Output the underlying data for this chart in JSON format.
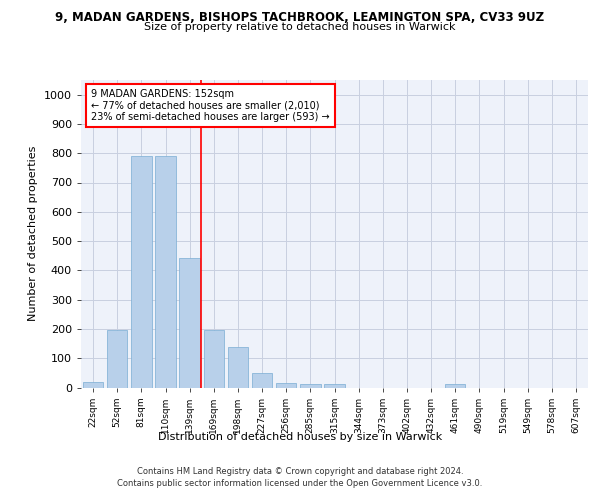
{
  "title_line1": "9, MADAN GARDENS, BISHOPS TACHBROOK, LEAMINGTON SPA, CV33 9UZ",
  "title_line2": "Size of property relative to detached houses in Warwick",
  "xlabel": "Distribution of detached houses by size in Warwick",
  "ylabel": "Number of detached properties",
  "bar_color": "#b8d0ea",
  "bar_edgecolor": "#7aadd4",
  "categories": [
    "22sqm",
    "52sqm",
    "81sqm",
    "110sqm",
    "139sqm",
    "169sqm",
    "198sqm",
    "227sqm",
    "256sqm",
    "285sqm",
    "315sqm",
    "344sqm",
    "373sqm",
    "402sqm",
    "432sqm",
    "461sqm",
    "490sqm",
    "519sqm",
    "549sqm",
    "578sqm",
    "607sqm"
  ],
  "values": [
    18,
    197,
    790,
    790,
    443,
    197,
    140,
    50,
    15,
    13,
    13,
    0,
    0,
    0,
    0,
    12,
    0,
    0,
    0,
    0,
    0
  ],
  "ylim": [
    0,
    1050
  ],
  "yticks": [
    0,
    100,
    200,
    300,
    400,
    500,
    600,
    700,
    800,
    900,
    1000
  ],
  "vline_x": 4.48,
  "annotation_text": "9 MADAN GARDENS: 152sqm\n← 77% of detached houses are smaller (2,010)\n23% of semi-detached houses are larger (593) →",
  "annotation_box_color": "white",
  "annotation_box_edgecolor": "red",
  "vline_color": "red",
  "background_color": "#eef2fa",
  "grid_color": "#c8cfe0",
  "footer_line1": "Contains HM Land Registry data © Crown copyright and database right 2024.",
  "footer_line2": "Contains public sector information licensed under the Open Government Licence v3.0."
}
